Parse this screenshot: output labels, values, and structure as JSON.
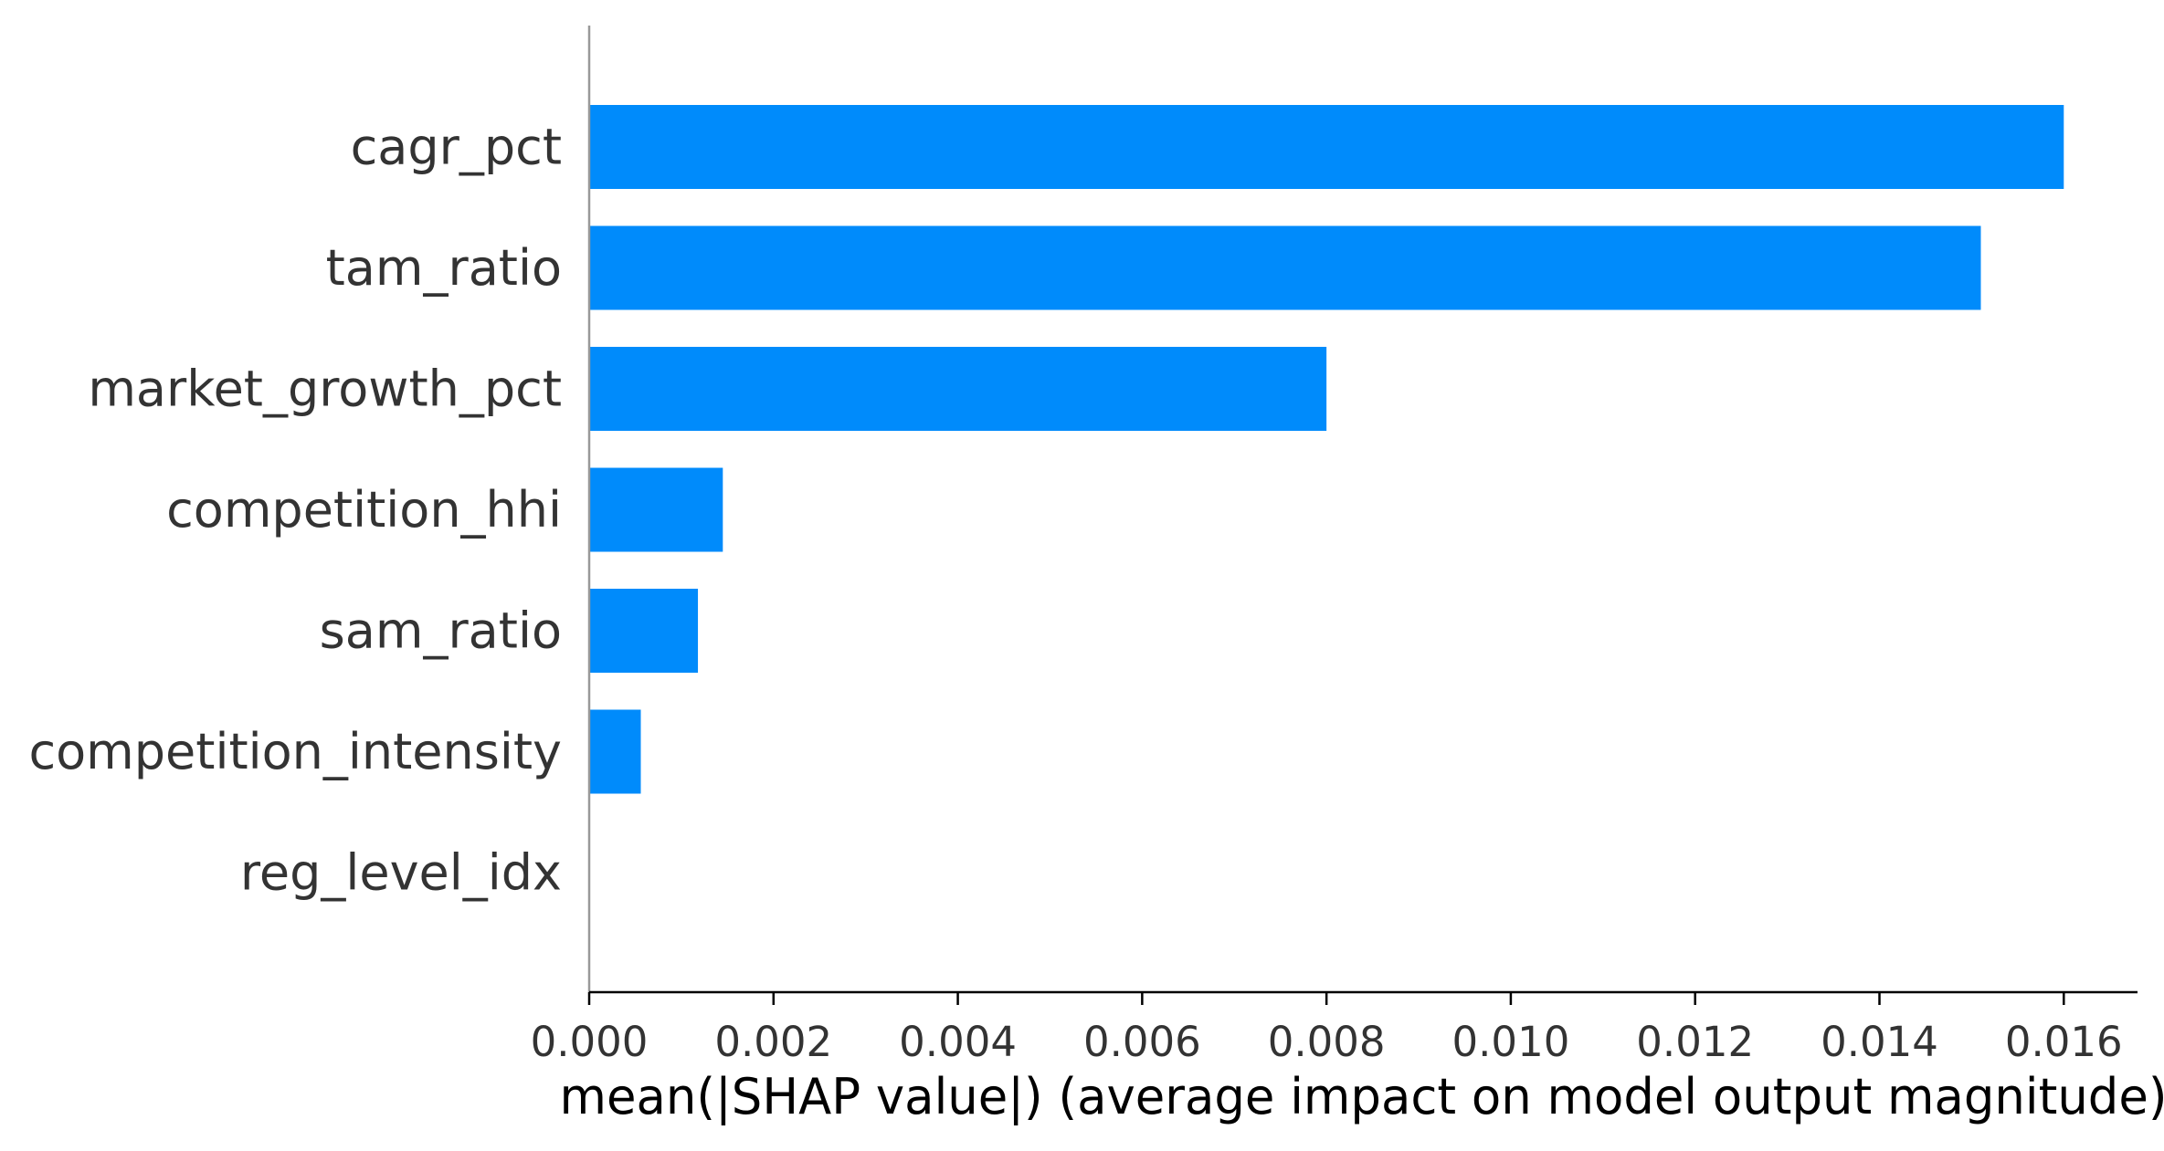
{
  "chart_data": {
    "type": "bar",
    "orientation": "horizontal",
    "categories": [
      "cagr_pct",
      "tam_ratio",
      "market_growth_pct",
      "competition_hhi",
      "sam_ratio",
      "competition_intensity",
      "reg_level_idx"
    ],
    "values": [
      0.016,
      0.0151,
      0.008,
      0.00145,
      0.00118,
      0.00056,
      0.0
    ],
    "xlabel": "mean(|SHAP value|) (average impact on model output magnitude)",
    "ylabel": "",
    "xlim": [
      0.0,
      0.0168
    ],
    "xticks": [
      "0.000",
      "0.002",
      "0.004",
      "0.006",
      "0.008",
      "0.010",
      "0.012",
      "0.014",
      "0.016"
    ],
    "bar_color": "#008bfb",
    "axis_color": "#000000",
    "spine_color": "#999999",
    "grid": false
  }
}
